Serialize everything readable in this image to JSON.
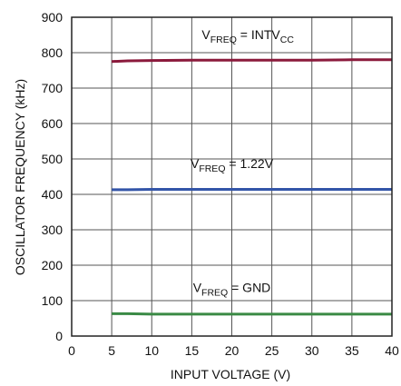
{
  "chart_data": {
    "type": "line",
    "xlabel": "INPUT VOLTAGE (V)",
    "ylabel": "OSCILLATOR FREQUENCY (kHz)",
    "xlim": [
      0,
      40
    ],
    "ylim": [
      0,
      900
    ],
    "xticks": [
      0,
      5,
      10,
      15,
      20,
      25,
      30,
      35,
      40
    ],
    "yticks": [
      0,
      100,
      200,
      300,
      400,
      500,
      600,
      700,
      800,
      900
    ],
    "grid": true,
    "series": [
      {
        "key": "intvcc",
        "label_main": "V",
        "label_sub": "FREQ",
        "label_rest": " = INTV",
        "label_sub2": "CC",
        "color": "#8b1a3c",
        "x": [
          5,
          7,
          10,
          15,
          20,
          25,
          30,
          35,
          40
        ],
        "y": [
          775,
          777,
          778,
          779,
          779,
          779,
          779,
          780,
          780
        ]
      },
      {
        "key": "v122",
        "label_main": "V",
        "label_sub": "FREQ",
        "label_rest": " = 1.22V",
        "label_sub2": "",
        "color": "#3355a8",
        "x": [
          5,
          7,
          10,
          15,
          20,
          25,
          30,
          35,
          40
        ],
        "y": [
          413,
          413,
          414,
          414,
          414,
          414,
          414,
          414,
          414
        ]
      },
      {
        "key": "gnd",
        "label_main": "V",
        "label_sub": "FREQ",
        "label_rest": " = GND",
        "label_sub2": "",
        "color": "#3a8a45",
        "x": [
          5,
          7,
          10,
          15,
          20,
          25,
          30,
          35,
          40
        ],
        "y": [
          63,
          63,
          62,
          62,
          62,
          62,
          62,
          62,
          62
        ]
      }
    ]
  }
}
